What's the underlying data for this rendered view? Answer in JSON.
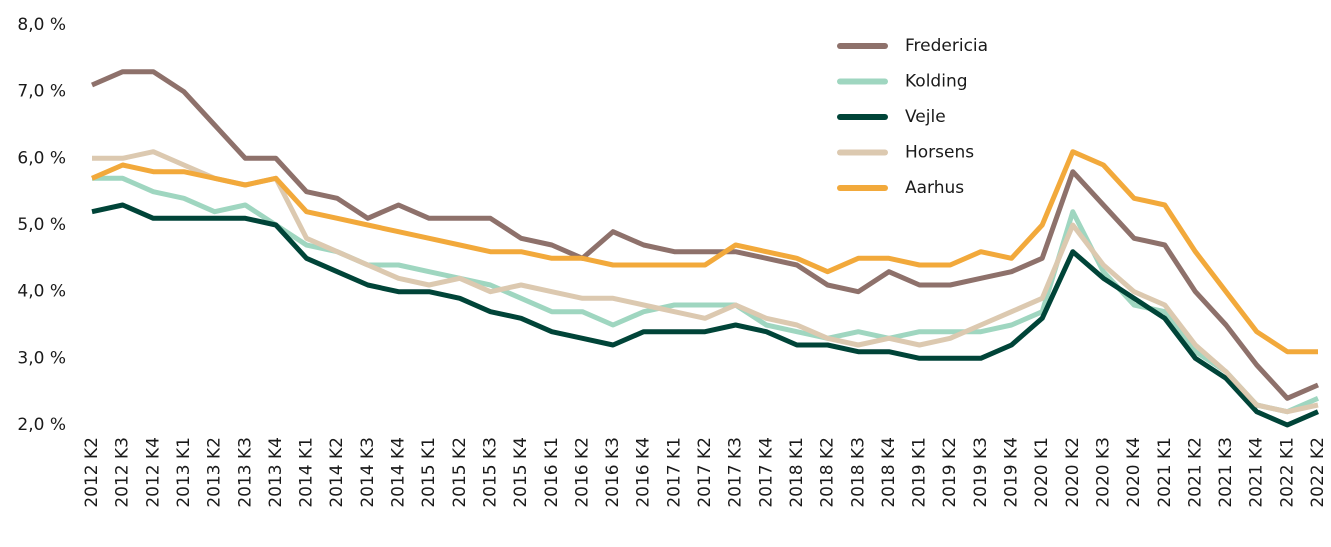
{
  "chart_data": {
    "type": "line",
    "categories": [
      "2012 K2",
      "2012 K3",
      "2012 K4",
      "2013 K1",
      "2013 K2",
      "2013 K3",
      "2013 K4",
      "2014 K1",
      "2014 K2",
      "2014 K3",
      "2014 K4",
      "2015 K1",
      "2015 K2",
      "2015 K3",
      "2015 K4",
      "2016 K1",
      "2016 K2",
      "2016 K3",
      "2016 K4",
      "2017 K1",
      "2017 K2",
      "2017 K3",
      "2017 K4",
      "2018 K1",
      "2018 K2",
      "2018 K3",
      "2018 K4",
      "2019 K1",
      "2019 K2",
      "2019 K3",
      "2019 K4",
      "2020 K1",
      "2020 K2",
      "2020 K3",
      "2020 K4",
      "2021 K1",
      "2021 K2",
      "2021 K3",
      "2021 K4",
      "2022 K1",
      "2022 K2"
    ],
    "series": [
      {
        "name": "Fredericia",
        "color": "#8e716b",
        "values": [
          7.1,
          7.3,
          7.3,
          7.0,
          6.5,
          6.0,
          6.0,
          5.5,
          5.4,
          5.1,
          5.3,
          5.1,
          5.1,
          5.1,
          4.8,
          4.7,
          4.5,
          4.9,
          4.7,
          4.6,
          4.6,
          4.6,
          4.5,
          4.4,
          4.1,
          4.0,
          4.3,
          4.1,
          4.1,
          4.2,
          4.3,
          4.5,
          5.8,
          5.3,
          4.8,
          4.7,
          4.0,
          3.5,
          2.9,
          2.4,
          2.6
        ]
      },
      {
        "name": "Kolding",
        "color": "#9fd6c0",
        "values": [
          5.7,
          5.7,
          5.5,
          5.4,
          5.2,
          5.3,
          5.0,
          4.7,
          4.6,
          4.4,
          4.4,
          4.3,
          4.2,
          4.1,
          3.9,
          3.7,
          3.7,
          3.5,
          3.7,
          3.8,
          3.8,
          3.8,
          3.5,
          3.4,
          3.3,
          3.4,
          3.3,
          3.4,
          3.4,
          3.4,
          3.5,
          3.7,
          5.2,
          4.3,
          3.8,
          3.7,
          3.1,
          2.8,
          2.3,
          2.2,
          2.4
        ]
      },
      {
        "name": "Vejle",
        "color": "#004438",
        "values": [
          5.2,
          5.3,
          5.1,
          5.1,
          5.1,
          5.1,
          5.0,
          4.5,
          4.3,
          4.1,
          4.0,
          4.0,
          3.9,
          3.7,
          3.6,
          3.4,
          3.3,
          3.2,
          3.4,
          3.4,
          3.4,
          3.5,
          3.4,
          3.2,
          3.2,
          3.1,
          3.1,
          3.0,
          3.0,
          3.0,
          3.2,
          3.6,
          4.6,
          4.2,
          3.9,
          3.6,
          3.0,
          2.7,
          2.2,
          2.0,
          2.2
        ]
      },
      {
        "name": "Horsens",
        "color": "#dcc9b0",
        "values": [
          6.0,
          6.0,
          6.1,
          5.9,
          5.7,
          5.6,
          5.7,
          4.8,
          4.6,
          4.4,
          4.2,
          4.1,
          4.2,
          4.0,
          4.1,
          4.0,
          3.9,
          3.9,
          3.8,
          3.7,
          3.6,
          3.8,
          3.6,
          3.5,
          3.3,
          3.2,
          3.3,
          3.2,
          3.3,
          3.5,
          3.7,
          3.9,
          5.0,
          4.4,
          4.0,
          3.8,
          3.2,
          2.8,
          2.3,
          2.2,
          2.3
        ]
      },
      {
        "name": "Aarhus",
        "color": "#f2a93b",
        "values": [
          5.7,
          5.9,
          5.8,
          5.8,
          5.7,
          5.6,
          5.7,
          5.2,
          5.1,
          5.0,
          4.9,
          4.8,
          4.7,
          4.6,
          4.6,
          4.5,
          4.5,
          4.4,
          4.4,
          4.4,
          4.4,
          4.7,
          4.6,
          4.5,
          4.3,
          4.5,
          4.5,
          4.4,
          4.4,
          4.6,
          4.5,
          5.0,
          6.1,
          5.9,
          5.4,
          5.3,
          4.6,
          4.0,
          3.4,
          3.1,
          3.1
        ]
      }
    ],
    "ylim": [
      2,
      8
    ],
    "yticks": [
      {
        "value": 2,
        "label": "2,0 %"
      },
      {
        "value": 3,
        "label": "3,0 %"
      },
      {
        "value": 4,
        "label": "4,0 %"
      },
      {
        "value": 5,
        "label": "5,0 %"
      },
      {
        "value": 6,
        "label": "6,0 %"
      },
      {
        "value": 7,
        "label": "7,0 %"
      },
      {
        "value": 8,
        "label": "8,0 %"
      }
    ],
    "grid": false,
    "legend": "top-right"
  }
}
